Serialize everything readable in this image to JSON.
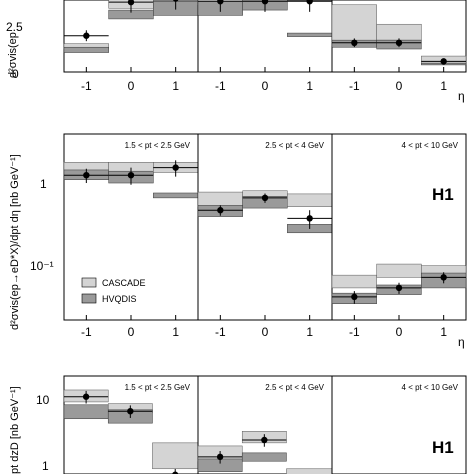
{
  "colors": {
    "cascade": "#d4d4d4",
    "hvqdis": "#9a9a9a",
    "frame": "#000000"
  },
  "labels": {
    "eta_axis": "η",
    "ylabel_top": "d²σvis(ep",
    "ylabel_middle": "d²σvis(ep→eD*X)/dpt dη [nb GeV⁻¹]",
    "ylabel_bottom": "pt dzD [nb GeV⁻¹]",
    "h1": "H1",
    "legend_cascade": "CASCADE",
    "legend_hvqdis": "HVQDIS"
  },
  "top_ticks": [
    "2.5",
    "0"
  ],
  "middle_yticks": [
    "1",
    "10⁻¹"
  ],
  "bottom_yticks": [
    "10",
    "1"
  ],
  "eta_ticks": [
    "-1",
    "0",
    "1"
  ],
  "chart_data": [
    {
      "type": "bar",
      "panel": "top",
      "ylim": [
        0,
        5.2
      ],
      "xlim": [
        -1.5,
        1.5
      ],
      "sub_panels": [
        {
          "bins": [
            [
              -1.5,
              -0.5
            ],
            [
              -0.5,
              0.5
            ],
            [
              0.5,
              1.5
            ]
          ],
          "data": [
            2.05,
            3.95,
            4.15
          ],
          "cascade": [
            [
              1.3,
              1.6
            ],
            [
              3.6,
              4.4
            ],
            [
              4.1,
              5.0
            ]
          ],
          "hvqdis": [
            [
              1.1,
              1.4
            ],
            [
              3.0,
              3.5
            ],
            [
              3.2,
              4.0
            ]
          ]
        },
        {
          "bins": [
            [
              -1.5,
              -0.5
            ],
            [
              -0.5,
              0.5
            ],
            [
              0.5,
              1.5
            ]
          ],
          "data": [
            4.0,
            4.0,
            4.0
          ],
          "cascade": [
            [
              3.8,
              4.6
            ],
            [
              4.0,
              4.7
            ],
            [
              4.1,
              4.6
            ]
          ],
          "hvqdis": [
            [
              3.2,
              4.0
            ],
            [
              3.5,
              4.2
            ],
            [
              2.0,
              2.2
            ]
          ]
        },
        {
          "bins": [
            [
              -1.5,
              -0.5
            ],
            [
              -0.5,
              0.5
            ],
            [
              0.5,
              1.5
            ]
          ],
          "data": [
            1.65,
            1.65,
            0.6
          ],
          "cascade": [
            [
              1.5,
              3.8
            ],
            [
              1.8,
              2.7
            ],
            [
              0.5,
              0.9
            ]
          ],
          "hvqdis": [
            [
              1.4,
              1.8
            ],
            [
              1.3,
              1.8
            ],
            [
              0.4,
              0.5
            ]
          ]
        }
      ]
    },
    {
      "type": "bar",
      "panel": "middle",
      "scale": "log",
      "ylim": [
        0.025,
        4.0
      ],
      "xlim": [
        -1.5,
        1.5
      ],
      "sub_panels": [
        {
          "label": "1.5 < pt < 2.5 GeV",
          "bins": [
            [
              -1.5,
              -0.5
            ],
            [
              -0.5,
              0.5
            ],
            [
              0.5,
              1.5
            ]
          ],
          "data": [
            1.3,
            1.3,
            1.6
          ],
          "data_err": [
            0.25,
            0.3,
            0.35
          ],
          "cascade": [
            [
              1.3,
              1.85
            ],
            [
              1.3,
              1.85
            ],
            [
              1.4,
              1.85
            ]
          ],
          "hvqdis": [
            [
              1.15,
              1.5
            ],
            [
              1.05,
              1.45
            ],
            [
              0.7,
              0.8
            ]
          ]
        },
        {
          "label": "2.5 < pt < 4 GeV",
          "bins": [
            [
              -1.5,
              -0.5
            ],
            [
              -0.5,
              0.5
            ],
            [
              0.5,
              1.5
            ]
          ],
          "data": [
            0.5,
            0.7,
            0.4
          ],
          "data_err": [
            0.07,
            0.09,
            0.1
          ],
          "cascade": [
            [
              0.55,
              0.82
            ],
            [
              0.7,
              0.85
            ],
            [
              0.55,
              0.78
            ]
          ],
          "hvqdis": [
            [
              0.42,
              0.57
            ],
            [
              0.53,
              0.73
            ],
            [
              0.27,
              0.34
            ]
          ]
        },
        {
          "label": "4 < pt < 10 GeV",
          "bins": [
            [
              -1.5,
              -0.5
            ],
            [
              -0.5,
              0.5
            ],
            [
              0.5,
              1.5
            ]
          ],
          "data": [
            0.047,
            0.06,
            0.08
          ],
          "data_err": [
            0.008,
            0.009,
            0.012
          ],
          "cascade": [
            [
              0.06,
              0.085
            ],
            [
              0.08,
              0.115
            ],
            [
              0.08,
              0.11
            ]
          ],
          "hvqdis": [
            [
              0.039,
              0.052
            ],
            [
              0.05,
              0.065
            ],
            [
              0.06,
              0.09
            ]
          ]
        }
      ]
    },
    {
      "type": "bar",
      "panel": "bottom",
      "scale": "log",
      "ylim": [
        0.9,
        14
      ],
      "sub_panels": [
        {
          "label": "1.5 < pt < 2.5 GeV",
          "bins": [
            [
              0,
              0.33
            ],
            [
              0.33,
              0.66
            ],
            [
              0.66,
              1.0
            ]
          ],
          "data": [
            8.5,
            6.0,
            1.3
          ],
          "cascade": [
            [
              7.5,
              10.0
            ],
            [
              5.8,
              7.2
            ],
            [
              1.5,
              2.8
            ]
          ],
          "hvqdis": [
            [
              5.0,
              7.0
            ],
            [
              4.5,
              6.2
            ],
            [
              0.95,
              1.3
            ]
          ]
        },
        {
          "label": "2.5 < pt < 4 GeV",
          "bins": [
            [
              0,
              0.33
            ],
            [
              0.33,
              0.66
            ],
            [
              0.66,
              1.0
            ]
          ],
          "data": [
            2.0,
            3.0,
            1.0
          ],
          "cascade": [
            [
              1.8,
              2.6
            ],
            [
              2.8,
              3.7
            ],
            [
              1.1,
              1.5
            ]
          ],
          "hvqdis": [
            [
              1.4,
              1.9
            ],
            [
              1.8,
              2.2
            ],
            [
              0.9,
              1.0
            ]
          ]
        },
        {
          "label": "4 < pt < 10 GeV",
          "bins": [],
          "data": [],
          "cascade": [],
          "hvqdis": []
        }
      ]
    }
  ]
}
